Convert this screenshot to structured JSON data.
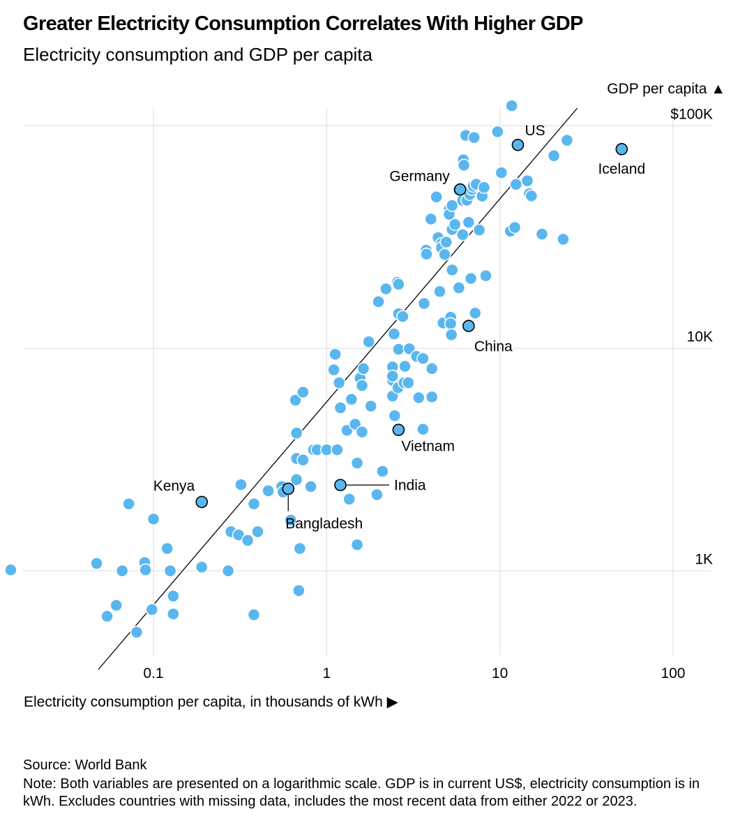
{
  "header": {
    "title": "Greater Electricity Consumption Correlates With Higher GDP",
    "subtitle": "Electricity consumption and GDP per capita"
  },
  "footer": {
    "source": "Source: World Bank",
    "note": "Note: Both variables are presented on a logarithmic scale. GDP is in current US$, electricity consumption is in kWh. Excludes countries with missing data, includes the most recent data from either 2022 or 2023."
  },
  "colors": {
    "dot": "#5ab6ee",
    "dot_stroke": "#ffffff",
    "highlight_stroke": "#000000",
    "grid": "#e6e6e6",
    "trend": "#000000"
  },
  "chart_data": {
    "type": "scatter",
    "xlabel": "Electricity consumption per capita, in thousands of kWh ▶",
    "ylabel": "GDP per capita ▲",
    "x_scale": "log",
    "y_scale": "log",
    "xlim": [
      0.013,
      210
    ],
    "ylim": [
      360,
      120000
    ],
    "grid": true,
    "x_ticks": [
      {
        "value": 0.1,
        "label": "0.1"
      },
      {
        "value": 1,
        "label": "1"
      },
      {
        "value": 10,
        "label": "10"
      },
      {
        "value": 100,
        "label": "100"
      }
    ],
    "y_ticks": [
      {
        "value": 1000,
        "label": "1K"
      },
      {
        "value": 10000,
        "label": "10K"
      },
      {
        "value": 100000,
        "label": "$100K"
      }
    ],
    "trendline": [
      [
        0.048,
        360
      ],
      [
        28,
        120000
      ]
    ],
    "highlighted": [
      {
        "label": "US",
        "x": 12.7,
        "y": 82000
      },
      {
        "label": "Iceland",
        "x": 50.5,
        "y": 78500
      },
      {
        "label": "Germany",
        "x": 5.9,
        "y": 51700
      },
      {
        "label": "China",
        "x": 6.6,
        "y": 12600
      },
      {
        "label": "Vietnam",
        "x": 2.6,
        "y": 4300
      },
      {
        "label": "India",
        "x": 1.2,
        "y": 2430
      },
      {
        "label": "Bangladesh",
        "x": 0.6,
        "y": 2340
      },
      {
        "label": "Kenya",
        "x": 0.19,
        "y": 2040
      }
    ],
    "points": [
      [
        0.015,
        1010
      ],
      [
        0.047,
        1080
      ],
      [
        0.054,
        625
      ],
      [
        0.061,
        700
      ],
      [
        0.066,
        1000
      ],
      [
        0.072,
        2000
      ],
      [
        0.08,
        530
      ],
      [
        0.089,
        1090
      ],
      [
        0.09,
        1010
      ],
      [
        0.098,
        670
      ],
      [
        0.1,
        1710
      ],
      [
        0.12,
        1260
      ],
      [
        0.125,
        1000
      ],
      [
        0.13,
        770
      ],
      [
        0.13,
        640
      ],
      [
        0.19,
        1040
      ],
      [
        0.27,
        1000
      ],
      [
        0.28,
        1500
      ],
      [
        0.31,
        1450
      ],
      [
        0.32,
        2440
      ],
      [
        0.35,
        1370
      ],
      [
        0.38,
        2000
      ],
      [
        0.38,
        635
      ],
      [
        0.4,
        1500
      ],
      [
        0.46,
        2290
      ],
      [
        0.55,
        2390
      ],
      [
        0.56,
        2260
      ],
      [
        0.62,
        1690
      ],
      [
        0.66,
        5850
      ],
      [
        0.67,
        4160
      ],
      [
        0.67,
        3200
      ],
      [
        0.67,
        2570
      ],
      [
        0.69,
        815
      ],
      [
        0.7,
        1260
      ],
      [
        0.73,
        6350
      ],
      [
        0.73,
        3150
      ],
      [
        0.81,
        2390
      ],
      [
        0.84,
        3500
      ],
      [
        0.88,
        3500
      ],
      [
        1.0,
        3500
      ],
      [
        1.1,
        8000
      ],
      [
        1.12,
        9400
      ],
      [
        1.15,
        3500
      ],
      [
        1.18,
        7000
      ],
      [
        1.2,
        5400
      ],
      [
        1.31,
        4280
      ],
      [
        1.35,
        2100
      ],
      [
        1.39,
        5900
      ],
      [
        1.46,
        4560
      ],
      [
        1.5,
        1310
      ],
      [
        1.5,
        3050
      ],
      [
        1.56,
        7350
      ],
      [
        1.6,
        4210
      ],
      [
        1.6,
        6800
      ],
      [
        1.63,
        8100
      ],
      [
        1.75,
        10700
      ],
      [
        1.8,
        5500
      ],
      [
        1.95,
        2200
      ],
      [
        1.99,
        16200
      ],
      [
        2.1,
        2800
      ],
      [
        2.2,
        18500
      ],
      [
        2.4,
        7180
      ],
      [
        2.4,
        8250
      ],
      [
        2.4,
        7500
      ],
      [
        2.4,
        6100
      ],
      [
        2.45,
        11600
      ],
      [
        2.47,
        4980
      ],
      [
        2.56,
        19800
      ],
      [
        2.58,
        6650
      ],
      [
        2.6,
        19400
      ],
      [
        2.6,
        14300
      ],
      [
        2.6,
        9900
      ],
      [
        2.75,
        13900
      ],
      [
        2.8,
        7000
      ],
      [
        2.83,
        8300
      ],
      [
        2.96,
        7000
      ],
      [
        3.0,
        9950
      ],
      [
        3.3,
        9200
      ],
      [
        3.4,
        6000
      ],
      [
        3.6,
        9000
      ],
      [
        3.6,
        4330
      ],
      [
        3.65,
        15900
      ],
      [
        3.75,
        27600
      ],
      [
        3.77,
        26500
      ],
      [
        4.0,
        38100
      ],
      [
        4.05,
        8100
      ],
      [
        4.05,
        6050
      ],
      [
        4.3,
        47900
      ],
      [
        4.4,
        31400
      ],
      [
        4.5,
        18000
      ],
      [
        4.6,
        29500
      ],
      [
        4.6,
        28300
      ],
      [
        4.7,
        13000
      ],
      [
        4.8,
        26400
      ],
      [
        4.9,
        30000
      ],
      [
        5.1,
        42000
      ],
      [
        5.1,
        40000
      ],
      [
        5.2,
        13800
      ],
      [
        5.2,
        12900
      ],
      [
        5.25,
        11500
      ],
      [
        5.3,
        34200
      ],
      [
        5.3,
        43800
      ],
      [
        5.3,
        22500
      ],
      [
        5.5,
        36000
      ],
      [
        5.8,
        18700
      ],
      [
        5.8,
        51500
      ],
      [
        6.1,
        32400
      ],
      [
        6.1,
        46200
      ],
      [
        6.15,
        70300
      ],
      [
        6.2,
        66500
      ],
      [
        6.35,
        90500
      ],
      [
        6.45,
        46300
      ],
      [
        6.6,
        36800
      ],
      [
        6.7,
        49100
      ],
      [
        6.8,
        20600
      ],
      [
        6.9,
        51700
      ],
      [
        7.0,
        53500
      ],
      [
        7.1,
        88500
      ],
      [
        7.2,
        14400
      ],
      [
        7.3,
        54600
      ],
      [
        7.6,
        34000
      ],
      [
        7.9,
        48300
      ],
      [
        8.1,
        52800
      ],
      [
        8.3,
        21200
      ],
      [
        9.7,
        94000
      ],
      [
        10.2,
        61500
      ],
      [
        11.5,
        33600
      ],
      [
        11.7,
        123000
      ],
      [
        12.2,
        34900
      ],
      [
        12.4,
        54500
      ],
      [
        14.4,
        56600
      ],
      [
        14.8,
        49500
      ],
      [
        15.2,
        48400
      ],
      [
        17.5,
        32600
      ],
      [
        20.5,
        73300
      ],
      [
        23.2,
        30900
      ],
      [
        24.4,
        86000
      ]
    ]
  }
}
